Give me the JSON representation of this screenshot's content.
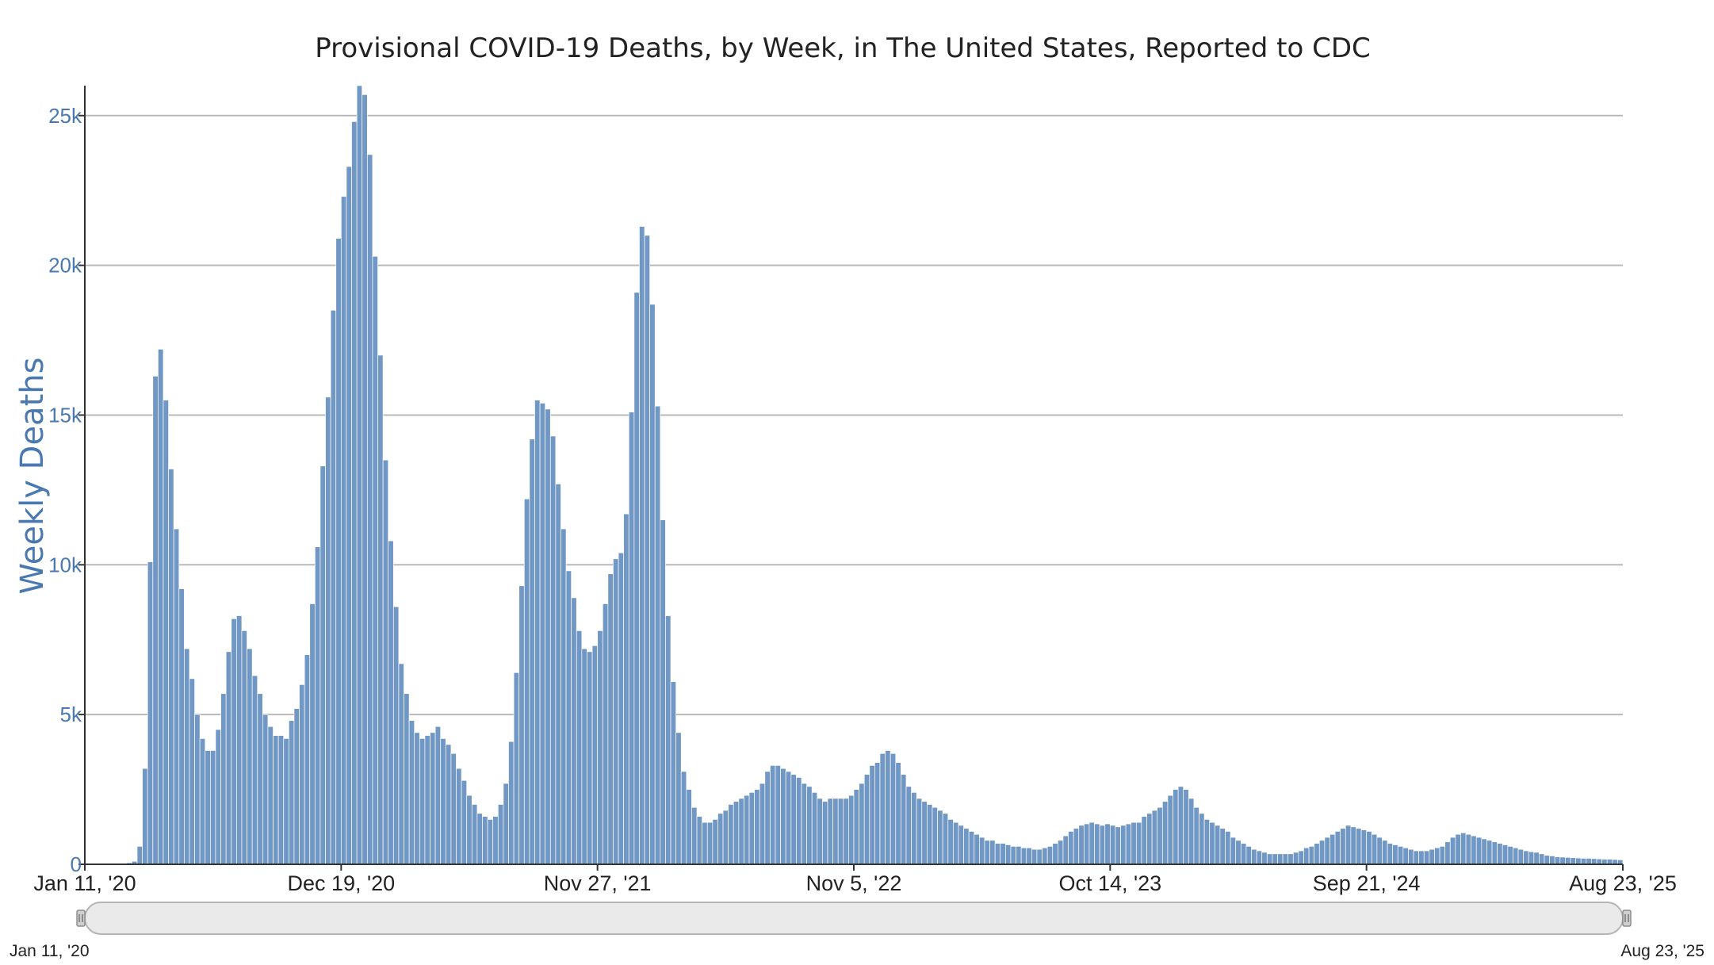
{
  "chart_data": {
    "type": "bar",
    "title": "Provisional COVID-19 Deaths, by Week, in The United States, Reported to CDC",
    "ylabel": "Weekly Deaths",
    "xlabel": "",
    "ylim": [
      0,
      26000
    ],
    "grid": true,
    "bar_color": "#7198c4",
    "x_start": "Jan 11, '20",
    "x_end": "Aug 23, '25",
    "y_ticks": [
      {
        "value": 0,
        "label": "0"
      },
      {
        "value": 5000,
        "label": "5k"
      },
      {
        "value": 10000,
        "label": "10k"
      },
      {
        "value": 15000,
        "label": "15k"
      },
      {
        "value": 20000,
        "label": "20k"
      },
      {
        "value": 25000,
        "label": "25k"
      }
    ],
    "x_ticks": [
      {
        "week": 0,
        "label": "Jan 11, '20"
      },
      {
        "week": 49,
        "label": "Dec 19, '20"
      },
      {
        "week": 98,
        "label": "Nov 27, '21"
      },
      {
        "week": 147,
        "label": "Nov 5, '22"
      },
      {
        "week": 196,
        "label": "Oct 14, '23"
      },
      {
        "week": 245,
        "label": "Sep 21, '24"
      },
      {
        "week": 294,
        "label": "Aug 23, '25"
      }
    ],
    "values": [
      0,
      0,
      0,
      0,
      0,
      0,
      0,
      0,
      50,
      100,
      600,
      3200,
      10100,
      16300,
      17200,
      15500,
      13200,
      11200,
      9200,
      7200,
      6200,
      5000,
      4200,
      3800,
      3800,
      4500,
      5700,
      7100,
      8200,
      8300,
      7800,
      7200,
      6300,
      5700,
      5000,
      4600,
      4300,
      4300,
      4200,
      4800,
      5200,
      6000,
      7000,
      8700,
      10600,
      13300,
      15600,
      18500,
      20900,
      22300,
      23300,
      24800,
      26000,
      25700,
      23700,
      20300,
      17000,
      13500,
      10800,
      8600,
      6700,
      5700,
      4800,
      4400,
      4200,
      4300,
      4400,
      4600,
      4200,
      4000,
      3700,
      3200,
      2800,
      2300,
      2000,
      1700,
      1600,
      1500,
      1600,
      2000,
      2700,
      4100,
      6400,
      9300,
      12200,
      14200,
      15500,
      15400,
      15200,
      14300,
      12700,
      11200,
      9800,
      8900,
      7800,
      7200,
      7100,
      7300,
      7800,
      8700,
      9700,
      10200,
      10400,
      11700,
      15100,
      19100,
      21300,
      21000,
      18700,
      15300,
      11500,
      8300,
      6100,
      4400,
      3100,
      2500,
      1900,
      1600,
      1400,
      1400,
      1500,
      1700,
      1800,
      2000,
      2100,
      2200,
      2300,
      2400,
      2500,
      2700,
      3100,
      3300,
      3300,
      3200,
      3100,
      3000,
      2900,
      2700,
      2600,
      2400,
      2200,
      2100,
      2200,
      2200,
      2200,
      2200,
      2300,
      2500,
      2700,
      3000,
      3300,
      3400,
      3700,
      3800,
      3700,
      3400,
      3000,
      2600,
      2400,
      2200,
      2100,
      2000,
      1900,
      1800,
      1700,
      1500,
      1400,
      1300,
      1200,
      1100,
      1000,
      900,
      800,
      800,
      700,
      700,
      650,
      600,
      600,
      550,
      550,
      500,
      500,
      550,
      600,
      700,
      800,
      950,
      1100,
      1200,
      1300,
      1350,
      1400,
      1350,
      1300,
      1350,
      1300,
      1250,
      1300,
      1350,
      1400,
      1400,
      1600,
      1700,
      1800,
      1900,
      2100,
      2300,
      2500,
      2600,
      2500,
      2200,
      1900,
      1700,
      1500,
      1400,
      1300,
      1200,
      1100,
      900,
      800,
      700,
      600,
      500,
      450,
      400,
      350,
      350,
      350,
      350,
      350,
      400,
      450,
      550,
      600,
      700,
      800,
      900,
      1000,
      1100,
      1200,
      1300,
      1250,
      1200,
      1150,
      1100,
      1000,
      900,
      800,
      700,
      650,
      600,
      550,
      500,
      450,
      450,
      450,
      500,
      550,
      600,
      750,
      900,
      1000,
      1050,
      1000,
      950,
      900,
      850,
      800,
      750,
      700,
      650,
      600,
      550,
      500,
      450,
      420,
      400,
      350,
      300,
      280,
      250,
      240,
      230,
      220,
      210,
      200,
      200,
      190,
      180,
      170,
      170,
      160,
      150
    ]
  },
  "navigator": {
    "start_label": "Jan 11, '20",
    "end_label": "Aug 23, '25"
  }
}
